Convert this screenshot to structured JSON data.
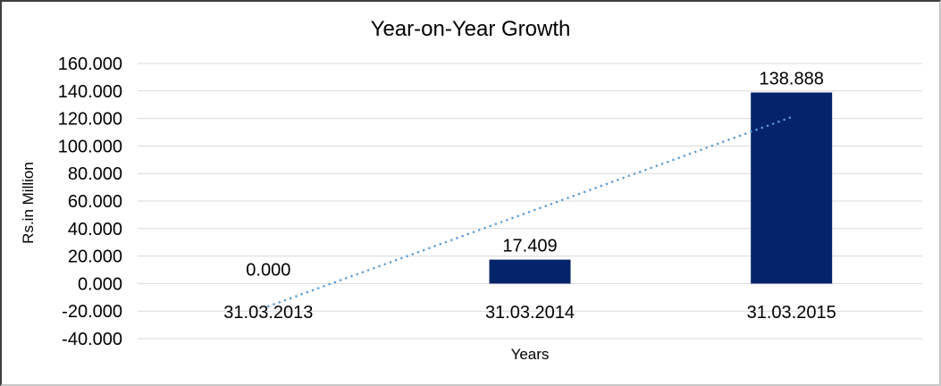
{
  "frame": {
    "background": "#ffffff",
    "border_dark": "#3f3f3f",
    "border_light": "#c6c6c6"
  },
  "chart_data": {
    "type": "bar",
    "title": "Year-on-Year Growth",
    "xlabel": "Years",
    "ylabel": "Rs.in Million",
    "categories": [
      "31.03.2013",
      "31.03.2014",
      "31.03.2015"
    ],
    "values": [
      0,
      17.409,
      138.888
    ],
    "data_labels": [
      "0.000",
      "17.409",
      "138.888"
    ],
    "ylim": [
      -40,
      160
    ],
    "y_ticks": [
      {
        "value": 160,
        "label": "160.000"
      },
      {
        "value": 140,
        "label": "140.000"
      },
      {
        "value": 120,
        "label": "120.000"
      },
      {
        "value": 100,
        "label": "100.000"
      },
      {
        "value": 80,
        "label": "80.000"
      },
      {
        "value": 60,
        "label": "60.000"
      },
      {
        "value": 40,
        "label": "40.000"
      },
      {
        "value": 20,
        "label": "20.000"
      },
      {
        "value": 0,
        "label": "0.000"
      },
      {
        "value": -20,
        "label": "-20.000"
      },
      {
        "value": -40,
        "label": "-40.000"
      }
    ],
    "grid": true,
    "legend": "none",
    "colors": {
      "bar": "#052369",
      "gridline": "#d9d9d9",
      "text": "#000000",
      "trendline": "#5b9bd5"
    },
    "trendline": {
      "style": "dotted",
      "start": {
        "category_index": 0,
        "value": -16.5
      },
      "end": {
        "category_index": 2,
        "value": 121
      }
    }
  }
}
